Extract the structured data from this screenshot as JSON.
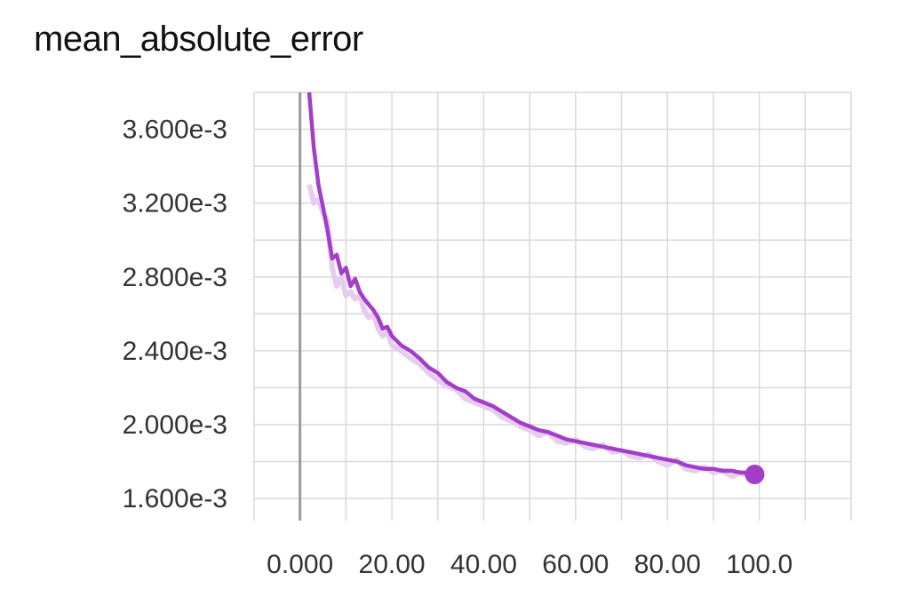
{
  "chart_data": {
    "type": "line",
    "title": "mean_absolute_error",
    "xlabel": "",
    "ylabel": "",
    "xlim": [
      -10,
      120
    ],
    "ylim": [
      0.00148,
      0.0038
    ],
    "x_ticks": [
      0,
      20,
      40,
      60,
      80,
      100
    ],
    "x_tick_labels": [
      "0.000",
      "20.00",
      "40.00",
      "60.00",
      "80.00",
      "100.0"
    ],
    "y_ticks": [
      0.0016,
      0.002,
      0.0024,
      0.0028,
      0.0032,
      0.0036
    ],
    "y_tick_labels": [
      "1.600e-3",
      "2.000e-3",
      "2.400e-3",
      "2.800e-3",
      "3.200e-3",
      "3.600e-3"
    ],
    "grid": true,
    "color": "#a23ec8",
    "raw_color": "#e6cdf0",
    "series": [
      {
        "smoothed": true,
        "x": [
          2,
          3,
          4,
          5,
          6,
          7,
          8,
          9,
          10,
          11,
          12,
          13,
          14,
          15,
          16,
          17,
          18,
          19,
          20,
          22,
          24,
          26,
          28,
          30,
          32,
          34,
          36,
          38,
          40,
          42,
          44,
          46,
          48,
          50,
          52,
          54,
          56,
          58,
          60,
          62,
          64,
          66,
          68,
          70,
          72,
          74,
          76,
          78,
          80,
          82,
          84,
          86,
          88,
          90,
          92,
          94,
          96,
          98,
          99
        ],
        "y": [
          0.0038,
          0.0035,
          0.0033,
          0.00318,
          0.00305,
          0.0029,
          0.00292,
          0.00282,
          0.00285,
          0.00275,
          0.00279,
          0.00272,
          0.00268,
          0.00265,
          0.00262,
          0.00258,
          0.00252,
          0.00253,
          0.00248,
          0.00243,
          0.0024,
          0.00236,
          0.00231,
          0.00228,
          0.00223,
          0.0022,
          0.00218,
          0.00214,
          0.00212,
          0.0021,
          0.00207,
          0.00204,
          0.00201,
          0.00199,
          0.00197,
          0.00196,
          0.00194,
          0.00192,
          0.00191,
          0.0019,
          0.00189,
          0.00188,
          0.00187,
          0.00186,
          0.00185,
          0.00184,
          0.00183,
          0.00182,
          0.00181,
          0.0018,
          0.00178,
          0.00177,
          0.00176,
          0.00176,
          0.00175,
          0.00175,
          0.00174,
          0.00174,
          0.00173
        ]
      },
      {
        "smoothed": false,
        "x": [
          2,
          3,
          4,
          5,
          6,
          7,
          8,
          9,
          10,
          11,
          12,
          13,
          14,
          15,
          16,
          17,
          18,
          19,
          20,
          22,
          24,
          26,
          28,
          30,
          32,
          34,
          36,
          38,
          40,
          42,
          44,
          46,
          48,
          50,
          52,
          54,
          56,
          58,
          60,
          62,
          64,
          66,
          68,
          70,
          72,
          74,
          76,
          78,
          80,
          82,
          84,
          86,
          88,
          90,
          92,
          94,
          96,
          98,
          99
        ],
        "y": [
          0.0033,
          0.0032,
          0.00322,
          0.00315,
          0.0031,
          0.00285,
          0.00275,
          0.0028,
          0.0027,
          0.00272,
          0.00268,
          0.0027,
          0.00262,
          0.00258,
          0.0026,
          0.00252,
          0.00248,
          0.0025,
          0.00243,
          0.0024,
          0.00236,
          0.00233,
          0.00228,
          0.00224,
          0.00221,
          0.00219,
          0.00214,
          0.00212,
          0.0021,
          0.00208,
          0.00204,
          0.00202,
          0.00199,
          0.00197,
          0.00194,
          0.00196,
          0.00191,
          0.0019,
          0.00192,
          0.00188,
          0.00187,
          0.00189,
          0.00185,
          0.00186,
          0.00183,
          0.00182,
          0.00184,
          0.0018,
          0.00178,
          0.00181,
          0.00176,
          0.00175,
          0.00177,
          0.00174,
          0.00175,
          0.00172,
          0.00174,
          0.00172,
          0.00172
        ]
      }
    ]
  }
}
